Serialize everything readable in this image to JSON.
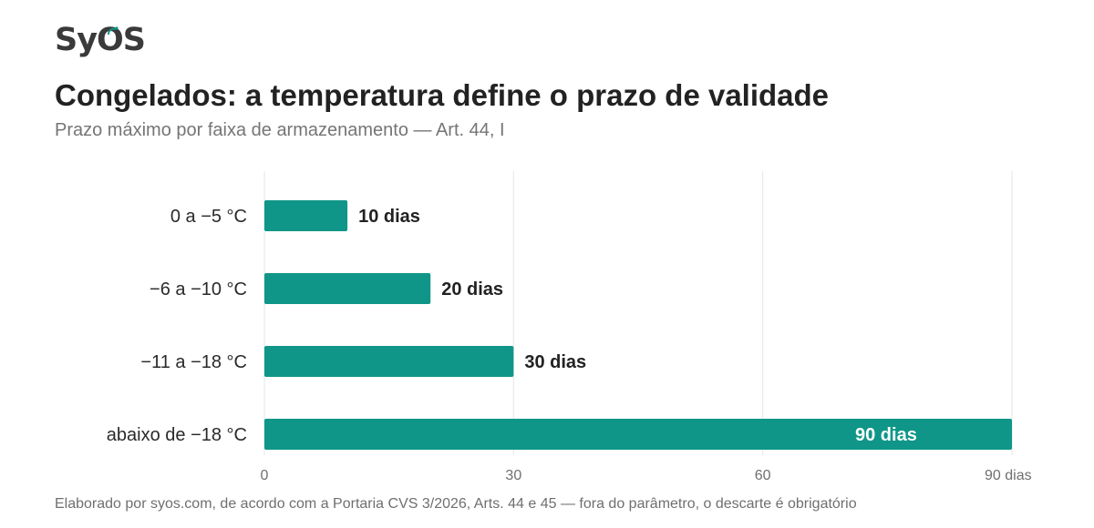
{
  "brand": {
    "logo_text_left": "Sy",
    "logo_text_o": "O",
    "logo_text_right": "S"
  },
  "header": {
    "title": "Congelados: a temperatura define o prazo de validade",
    "subtitle": "Prazo máximo por faixa de armazenamento — Art. 44, I"
  },
  "footer": {
    "source": "Elaborado por syos.com, de acordo com a Portaria CVS 3/2026, Arts. 44 e 45 — fora do parâmetro, o descarte é obrigatório"
  },
  "chart_data": {
    "type": "bar",
    "orientation": "horizontal",
    "categories": [
      "0 a −5 °C",
      "−6 a −10 °C",
      "−11 a −18 °C",
      "abaixo de −18 °C"
    ],
    "values": [
      10,
      20,
      30,
      90
    ],
    "data_labels": [
      "10 dias",
      "20 dias",
      "30 dias",
      "90 dias"
    ],
    "xlim": [
      0,
      90
    ],
    "x_ticks": [
      0,
      30,
      60,
      90
    ],
    "x_tick_labels": [
      "0",
      "30",
      "60",
      "90 dias"
    ],
    "grid": true,
    "colors": {
      "bar": "#0f9688",
      "grid": "#e6e6e6",
      "label_outside": "#222222",
      "label_inside": "#ffffff"
    }
  }
}
